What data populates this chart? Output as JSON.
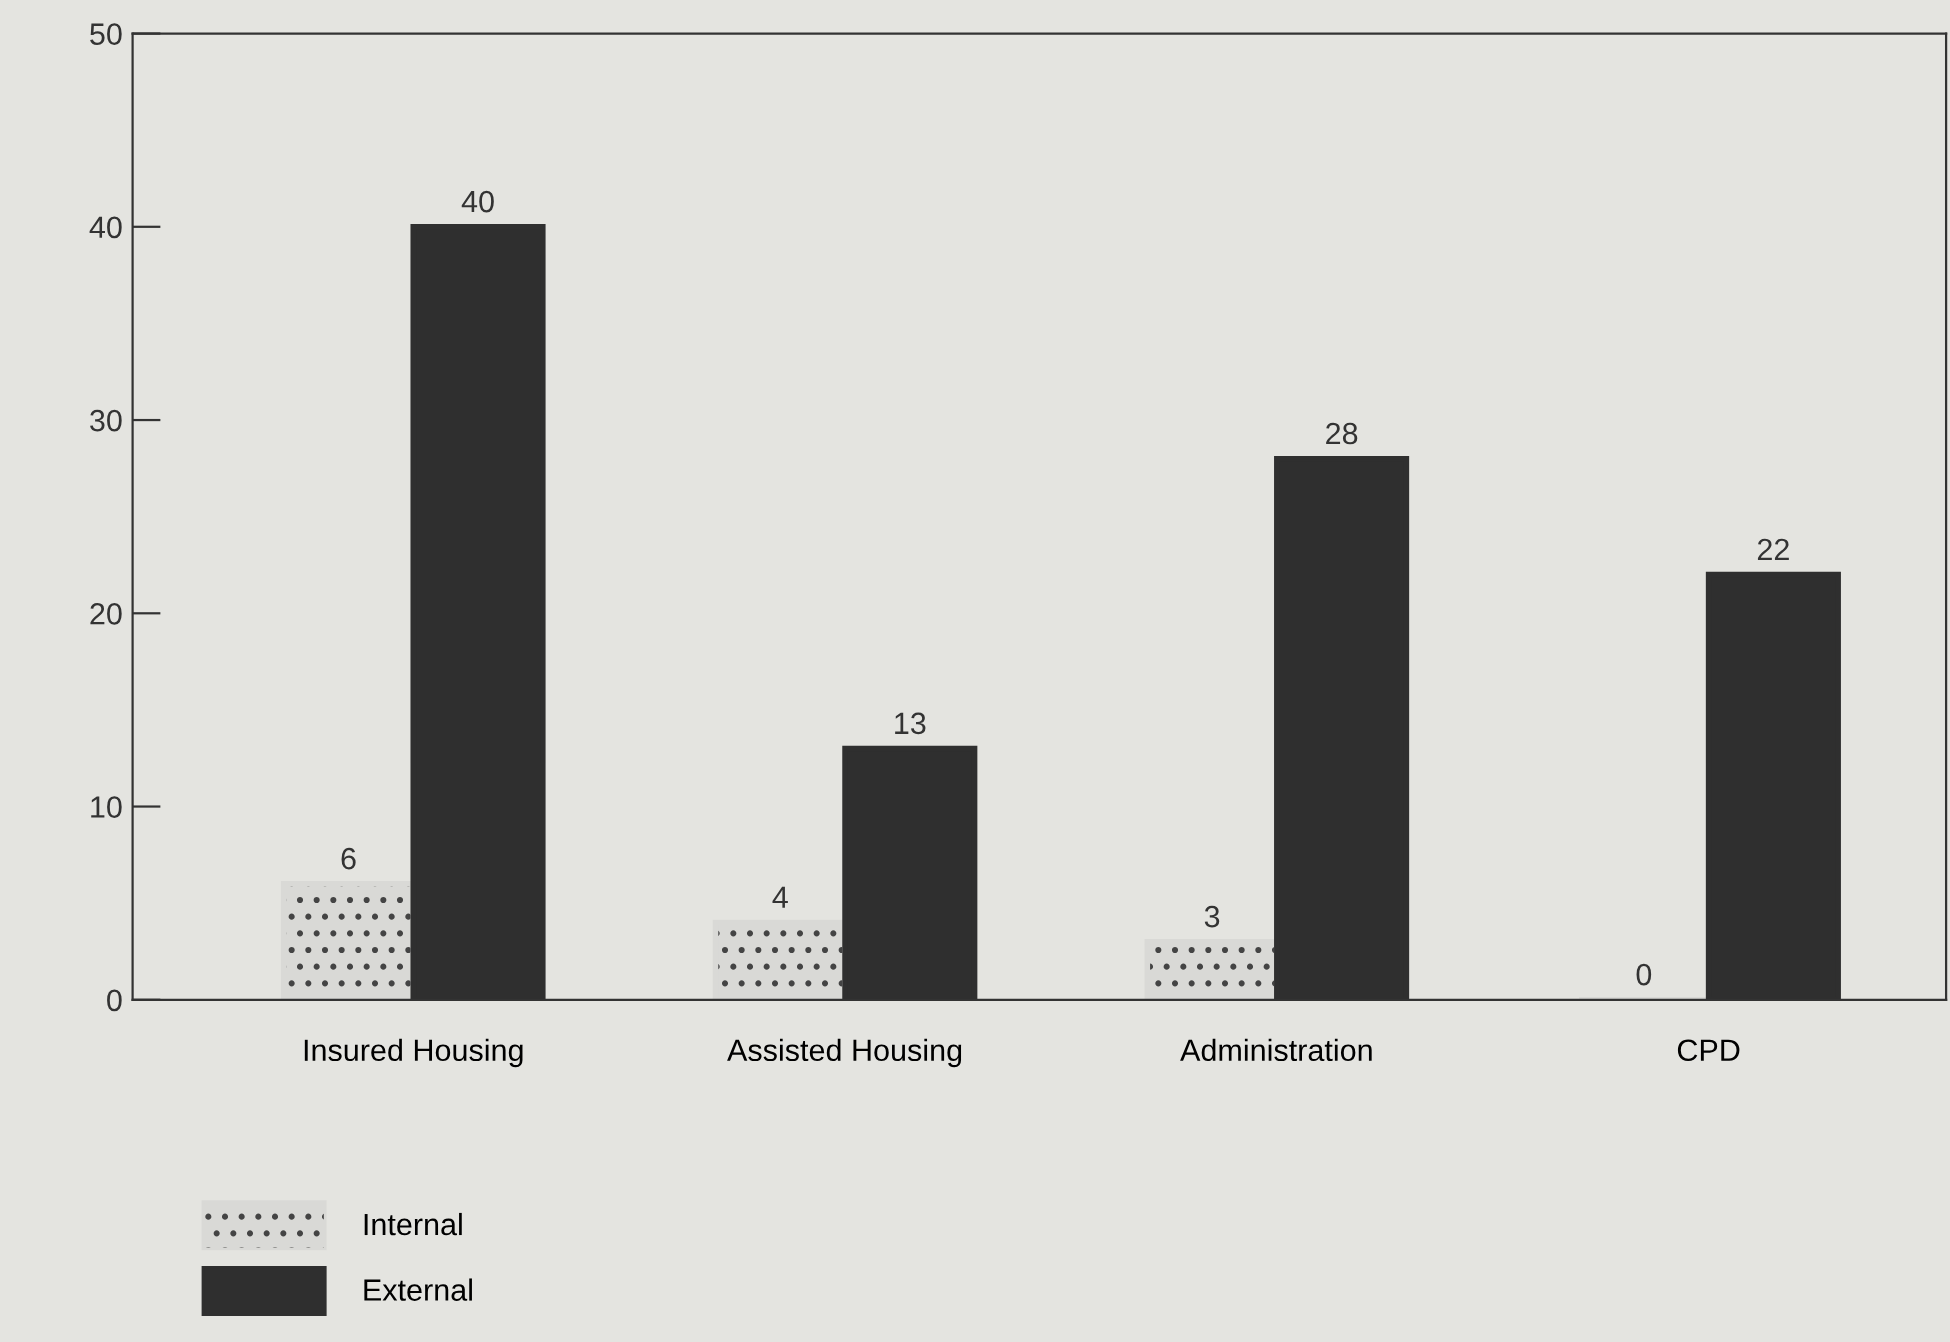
{
  "chart_data": {
    "type": "bar",
    "categories": [
      "Insured Housing",
      "Assisted Housing",
      "Administration",
      "CPD"
    ],
    "series": [
      {
        "name": "Internal",
        "color": "#d9d9d6",
        "values": [
          6,
          4,
          3,
          0
        ]
      },
      {
        "name": "External",
        "color": "#2f2f2f",
        "values": [
          40,
          13,
          28,
          22
        ]
      }
    ],
    "ylim": [
      0,
      50
    ],
    "yticks": [
      0,
      10,
      20,
      30,
      40,
      50
    ],
    "data_labels": true,
    "grid": false,
    "legend": "bottom left"
  }
}
